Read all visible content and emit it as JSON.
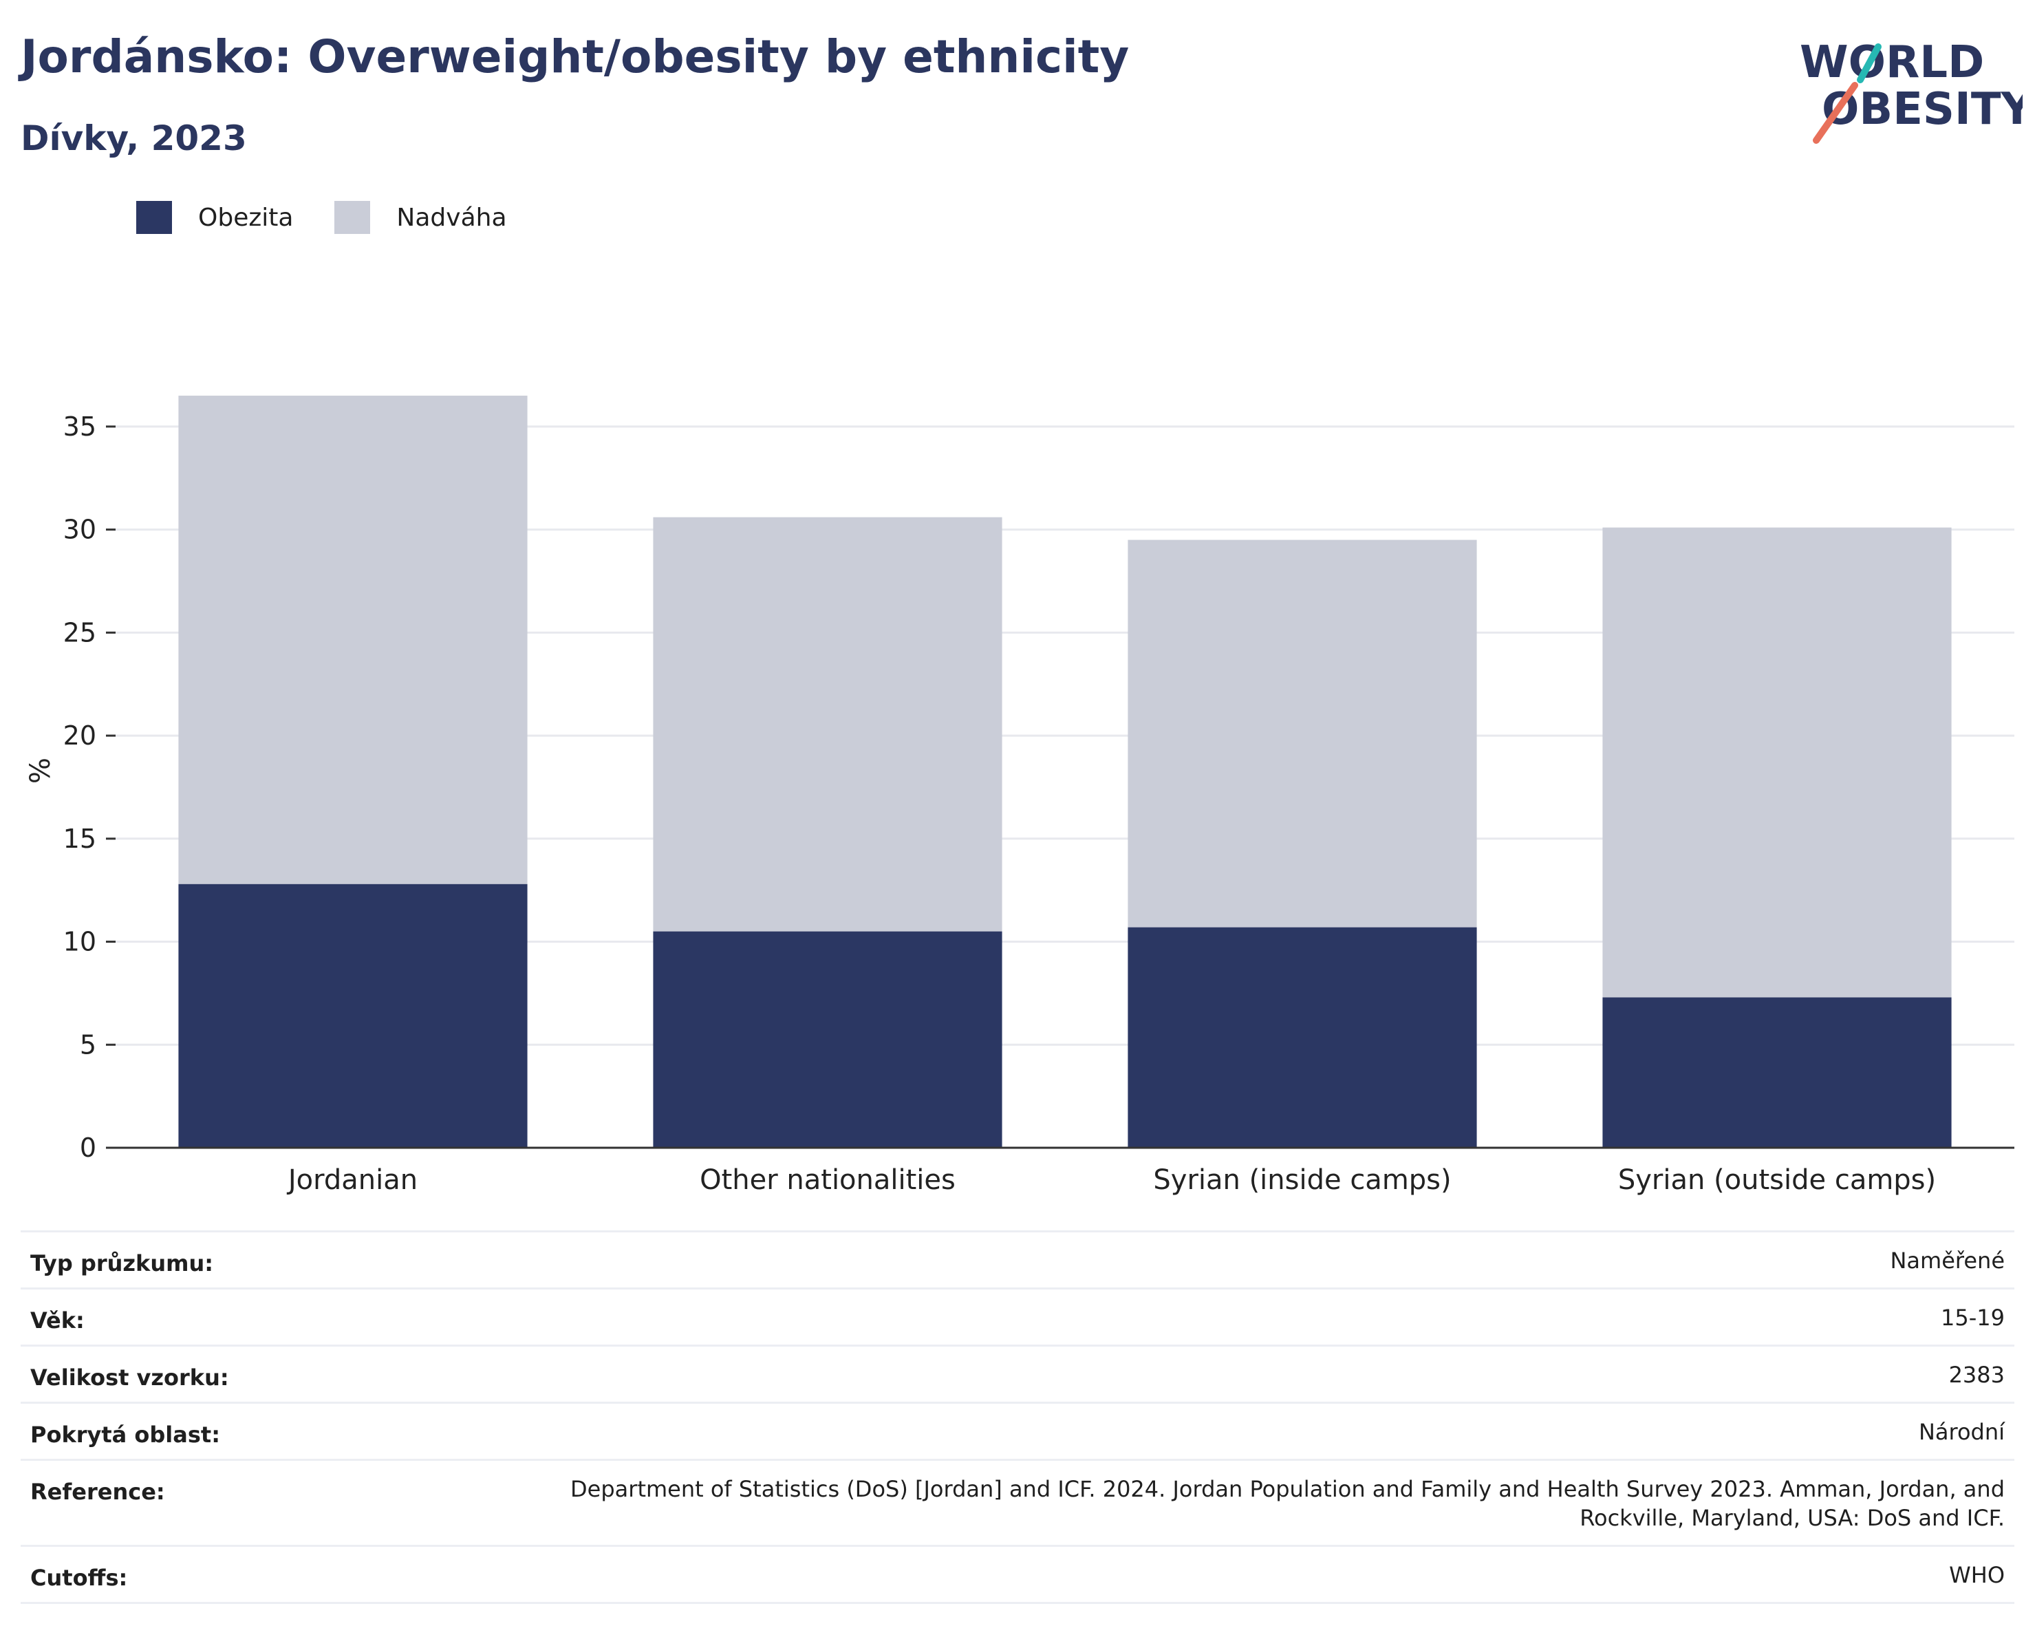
{
  "header": {
    "title": "Jordánsko: Overweight/obesity by ethnicity",
    "subtitle": "Dívky, 2023"
  },
  "logo": {
    "line1": "WORLD",
    "line2": "OBESITY"
  },
  "chart_data": {
    "type": "bar",
    "stacked": true,
    "categories": [
      "Jordanian",
      "Other nationalities",
      "Syrian (inside camps)",
      "Syrian (outside camps)"
    ],
    "series": [
      {
        "name": "Obezita",
        "values": [
          12.8,
          10.5,
          10.7,
          7.3
        ],
        "color": "#2b3763"
      },
      {
        "name": "Nadváha",
        "values": [
          23.7,
          20.1,
          18.8,
          22.8
        ],
        "color": "#cacdd8"
      }
    ],
    "ylabel": "%",
    "ylim": [
      0,
      37
    ],
    "yticks": [
      0,
      5,
      10,
      15,
      20,
      25,
      30,
      35
    ],
    "grid": true,
    "legend_position": "top-left"
  },
  "info": [
    {
      "label": "Typ průzkumu:",
      "value": "Naměřené"
    },
    {
      "label": "Věk:",
      "value": "15-19"
    },
    {
      "label": "Velikost vzorku:",
      "value": "2383"
    },
    {
      "label": "Pokrytá oblast:",
      "value": "Národní"
    },
    {
      "label": "Reference:",
      "value": "Department of Statistics (DoS) [Jordan] and ICF. 2024. Jordan Population and Family and Health Survey 2023. Amman, Jordan, and Rockville, Maryland, USA: DoS and ICF."
    },
    {
      "label": "Cutoffs:",
      "value": "WHO"
    }
  ]
}
